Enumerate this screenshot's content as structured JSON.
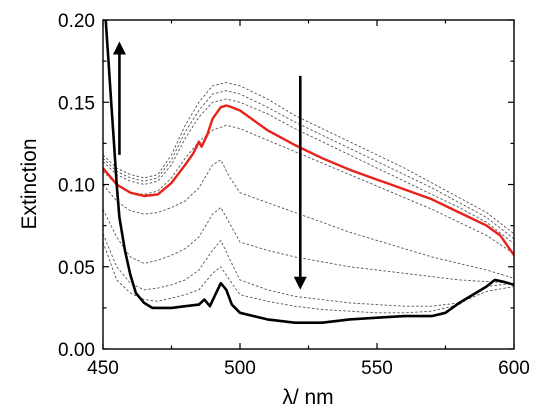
{
  "chart_data": {
    "type": "line",
    "title": "",
    "xlabel": "λ/ nm",
    "ylabel": "Extinction",
    "xlim": [
      450,
      600
    ],
    "ylim": [
      0,
      0.2
    ],
    "xticks": [
      450,
      500,
      550,
      600
    ],
    "xtick_labels": [
      "450",
      "500",
      "550",
      "600"
    ],
    "yticks": [
      0,
      0.05,
      0.1,
      0.15,
      0.2
    ],
    "ytick_labels": [
      "0.00",
      "0.05",
      "0.10",
      "0.15",
      "0.20"
    ],
    "grid": false,
    "legend": "none",
    "colors": {
      "axis": "#000000",
      "highlight": "#e8221b",
      "dashed": "#555555",
      "final": "#000000"
    },
    "annotations": [
      {
        "type": "arrow-up",
        "x": 456,
        "y_from": 0.118,
        "y_to": 0.183
      },
      {
        "type": "arrow-down",
        "x": 522,
        "y_from": 0.166,
        "y_to": 0.04
      }
    ],
    "series": [
      {
        "style": "dashed",
        "points": [
          [
            450,
            0.118
          ],
          [
            455,
            0.11
          ],
          [
            460,
            0.106
          ],
          [
            465,
            0.104
          ],
          [
            470,
            0.106
          ],
          [
            475,
            0.118
          ],
          [
            480,
            0.136
          ],
          [
            485,
            0.15
          ],
          [
            490,
            0.16
          ],
          [
            495,
            0.162
          ],
          [
            500,
            0.16
          ],
          [
            510,
            0.152
          ],
          [
            520,
            0.142
          ],
          [
            530,
            0.134
          ],
          [
            540,
            0.126
          ],
          [
            550,
            0.118
          ],
          [
            560,
            0.11
          ],
          [
            570,
            0.101
          ],
          [
            580,
            0.092
          ],
          [
            590,
            0.083
          ],
          [
            600,
            0.07
          ]
        ]
      },
      {
        "style": "dashed",
        "points": [
          [
            450,
            0.116
          ],
          [
            455,
            0.108
          ],
          [
            460,
            0.104
          ],
          [
            465,
            0.102
          ],
          [
            470,
            0.104
          ],
          [
            475,
            0.115
          ],
          [
            480,
            0.132
          ],
          [
            485,
            0.145
          ],
          [
            490,
            0.155
          ],
          [
            495,
            0.157
          ],
          [
            500,
            0.155
          ],
          [
            510,
            0.147
          ],
          [
            520,
            0.138
          ],
          [
            530,
            0.13
          ],
          [
            540,
            0.122
          ],
          [
            550,
            0.114
          ],
          [
            560,
            0.106
          ],
          [
            570,
            0.098
          ],
          [
            580,
            0.089
          ],
          [
            590,
            0.08
          ],
          [
            600,
            0.067
          ]
        ]
      },
      {
        "style": "dashed",
        "points": [
          [
            450,
            0.114
          ],
          [
            455,
            0.106
          ],
          [
            460,
            0.102
          ],
          [
            465,
            0.1
          ],
          [
            470,
            0.102
          ],
          [
            475,
            0.112
          ],
          [
            480,
            0.128
          ],
          [
            485,
            0.141
          ],
          [
            490,
            0.15
          ],
          [
            495,
            0.152
          ],
          [
            500,
            0.15
          ],
          [
            510,
            0.143
          ],
          [
            520,
            0.134
          ],
          [
            530,
            0.126
          ],
          [
            540,
            0.118
          ],
          [
            550,
            0.11
          ],
          [
            560,
            0.102
          ],
          [
            570,
            0.094
          ],
          [
            580,
            0.086
          ],
          [
            590,
            0.077
          ],
          [
            600,
            0.064
          ]
        ]
      },
      {
        "style": "dashed",
        "points": [
          [
            450,
            0.108
          ],
          [
            455,
            0.1
          ],
          [
            460,
            0.095
          ],
          [
            465,
            0.094
          ],
          [
            470,
            0.096
          ],
          [
            475,
            0.104
          ],
          [
            480,
            0.116
          ],
          [
            485,
            0.126
          ],
          [
            490,
            0.133
          ],
          [
            495,
            0.136
          ],
          [
            500,
            0.134
          ],
          [
            510,
            0.127
          ],
          [
            520,
            0.12
          ],
          [
            530,
            0.113
          ],
          [
            540,
            0.106
          ],
          [
            550,
            0.099
          ],
          [
            560,
            0.092
          ],
          [
            570,
            0.085
          ],
          [
            580,
            0.077
          ],
          [
            590,
            0.069
          ],
          [
            600,
            0.058
          ]
        ]
      },
      {
        "style": "dashed",
        "points": [
          [
            450,
            0.1
          ],
          [
            455,
            0.09
          ],
          [
            460,
            0.084
          ],
          [
            465,
            0.082
          ],
          [
            470,
            0.083
          ],
          [
            475,
            0.086
          ],
          [
            480,
            0.09
          ],
          [
            485,
            0.098
          ],
          [
            490,
            0.112
          ],
          [
            493,
            0.115
          ],
          [
            496,
            0.105
          ],
          [
            500,
            0.095
          ],
          [
            510,
            0.089
          ],
          [
            520,
            0.083
          ],
          [
            530,
            0.077
          ],
          [
            540,
            0.071
          ],
          [
            550,
            0.066
          ],
          [
            560,
            0.061
          ],
          [
            570,
            0.056
          ],
          [
            580,
            0.052
          ],
          [
            590,
            0.048
          ],
          [
            600,
            0.043
          ]
        ]
      },
      {
        "style": "dashed",
        "points": [
          [
            450,
            0.085
          ],
          [
            455,
            0.068
          ],
          [
            460,
            0.056
          ],
          [
            465,
            0.052
          ],
          [
            470,
            0.054
          ],
          [
            475,
            0.057
          ],
          [
            480,
            0.061
          ],
          [
            485,
            0.068
          ],
          [
            490,
            0.082
          ],
          [
            493,
            0.086
          ],
          [
            497,
            0.074
          ],
          [
            500,
            0.065
          ],
          [
            510,
            0.06
          ],
          [
            520,
            0.056
          ],
          [
            530,
            0.053
          ],
          [
            540,
            0.05
          ],
          [
            550,
            0.048
          ],
          [
            560,
            0.046
          ],
          [
            570,
            0.044
          ],
          [
            580,
            0.042
          ],
          [
            590,
            0.041
          ],
          [
            600,
            0.04
          ]
        ]
      },
      {
        "style": "dashed",
        "points": [
          [
            450,
            0.07
          ],
          [
            455,
            0.05
          ],
          [
            460,
            0.04
          ],
          [
            465,
            0.036
          ],
          [
            470,
            0.037
          ],
          [
            475,
            0.039
          ],
          [
            480,
            0.042
          ],
          [
            485,
            0.048
          ],
          [
            490,
            0.06
          ],
          [
            493,
            0.066
          ],
          [
            497,
            0.052
          ],
          [
            500,
            0.042
          ],
          [
            510,
            0.036
          ],
          [
            520,
            0.032
          ],
          [
            530,
            0.03
          ],
          [
            540,
            0.028
          ],
          [
            550,
            0.027
          ],
          [
            560,
            0.026
          ],
          [
            570,
            0.026
          ],
          [
            580,
            0.028
          ],
          [
            590,
            0.035
          ],
          [
            600,
            0.038
          ]
        ]
      },
      {
        "style": "dashed",
        "points": [
          [
            450,
            0.065
          ],
          [
            455,
            0.042
          ],
          [
            460,
            0.034
          ],
          [
            465,
            0.03
          ],
          [
            470,
            0.029
          ],
          [
            475,
            0.031
          ],
          [
            480,
            0.033
          ],
          [
            485,
            0.036
          ],
          [
            490,
            0.046
          ],
          [
            493,
            0.05
          ],
          [
            497,
            0.04
          ],
          [
            500,
            0.033
          ],
          [
            510,
            0.029
          ],
          [
            520,
            0.026
          ],
          [
            530,
            0.024
          ],
          [
            540,
            0.023
          ],
          [
            550,
            0.022
          ],
          [
            560,
            0.022
          ],
          [
            570,
            0.023
          ],
          [
            580,
            0.027
          ],
          [
            590,
            0.038
          ],
          [
            600,
            0.04
          ]
        ]
      },
      {
        "style": "highlight",
        "points": [
          [
            450,
            0.11
          ],
          [
            452,
            0.106
          ],
          [
            455,
            0.1
          ],
          [
            460,
            0.095
          ],
          [
            465,
            0.093
          ],
          [
            470,
            0.094
          ],
          [
            475,
            0.101
          ],
          [
            480,
            0.112
          ],
          [
            483,
            0.119
          ],
          [
            485,
            0.126
          ],
          [
            486,
            0.123
          ],
          [
            488,
            0.13
          ],
          [
            490,
            0.14
          ],
          [
            493,
            0.147
          ],
          [
            495,
            0.148
          ],
          [
            497,
            0.147
          ],
          [
            500,
            0.145
          ],
          [
            505,
            0.139
          ],
          [
            510,
            0.133
          ],
          [
            520,
            0.124
          ],
          [
            530,
            0.116
          ],
          [
            540,
            0.109
          ],
          [
            550,
            0.103
          ],
          [
            560,
            0.097
          ],
          [
            570,
            0.091
          ],
          [
            580,
            0.083
          ],
          [
            590,
            0.075
          ],
          [
            595,
            0.069
          ],
          [
            600,
            0.057
          ]
        ]
      },
      {
        "style": "final",
        "points": [
          [
            451,
            0.2
          ],
          [
            452,
            0.175
          ],
          [
            453,
            0.15
          ],
          [
            454,
            0.125
          ],
          [
            455,
            0.1
          ],
          [
            456,
            0.08
          ],
          [
            458,
            0.06
          ],
          [
            460,
            0.045
          ],
          [
            462,
            0.034
          ],
          [
            465,
            0.028
          ],
          [
            468,
            0.025
          ],
          [
            470,
            0.025
          ],
          [
            475,
            0.025
          ],
          [
            480,
            0.026
          ],
          [
            485,
            0.027
          ],
          [
            487,
            0.03
          ],
          [
            489,
            0.026
          ],
          [
            491,
            0.033
          ],
          [
            493,
            0.04
          ],
          [
            495,
            0.036
          ],
          [
            497,
            0.027
          ],
          [
            500,
            0.022
          ],
          [
            505,
            0.02
          ],
          [
            510,
            0.018
          ],
          [
            520,
            0.016
          ],
          [
            530,
            0.016
          ],
          [
            540,
            0.018
          ],
          [
            550,
            0.019
          ],
          [
            560,
            0.02
          ],
          [
            570,
            0.02
          ],
          [
            575,
            0.022
          ],
          [
            580,
            0.028
          ],
          [
            585,
            0.033
          ],
          [
            590,
            0.038
          ],
          [
            593,
            0.042
          ],
          [
            596,
            0.041
          ],
          [
            600,
            0.039
          ]
        ]
      }
    ]
  }
}
